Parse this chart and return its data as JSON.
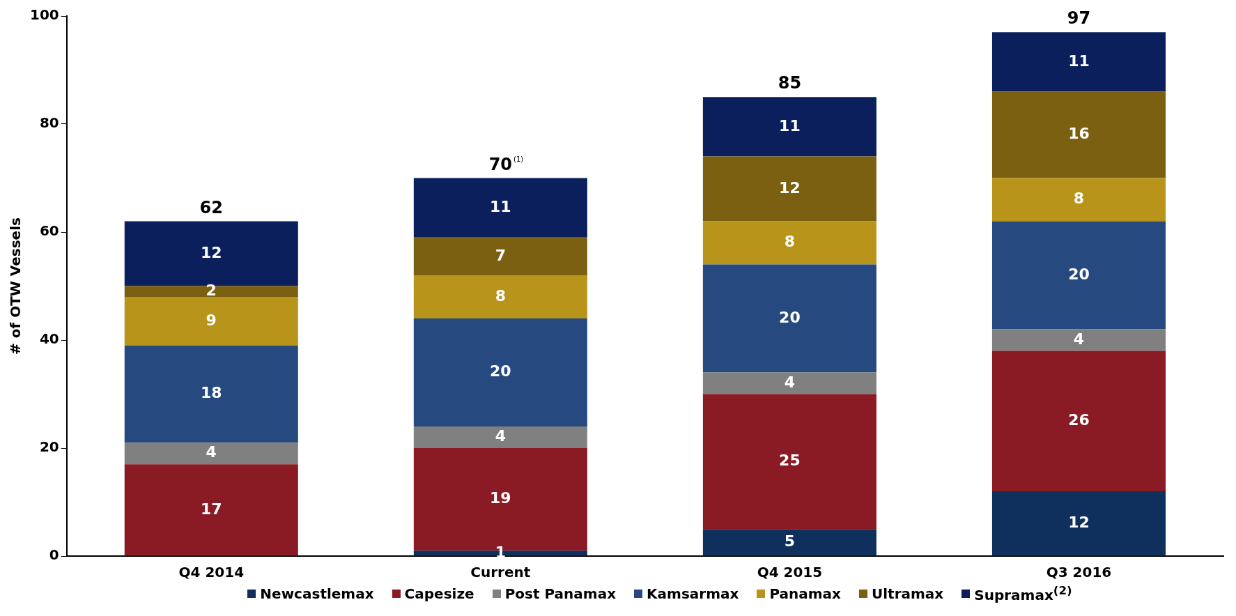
{
  "chart_data": {
    "type": "bar",
    "stacked": true,
    "ylabel": "# of OTW Vessels",
    "categories": [
      "Q4 2014",
      "Current",
      "Q4 2015",
      "Q3 2016"
    ],
    "series": [
      {
        "name": "Newcastlemax",
        "color": "#0f2f5c",
        "values": [
          null,
          1,
          5,
          12
        ]
      },
      {
        "name": "Capesize",
        "color": "#8a1a24",
        "values": [
          17,
          19,
          25,
          26
        ]
      },
      {
        "name": "Post Panamax",
        "color": "#808080",
        "values": [
          4,
          4,
          4,
          4
        ]
      },
      {
        "name": "Kamsarmax",
        "color": "#264a80",
        "values": [
          18,
          20,
          20,
          20
        ]
      },
      {
        "name": "Panamax",
        "color": "#b8941a",
        "values": [
          9,
          8,
          8,
          8
        ]
      },
      {
        "name": "Ultramax",
        "color": "#7a6010",
        "values": [
          2,
          7,
          12,
          16
        ]
      },
      {
        "name": "Supramax$^{(2)}$",
        "color": "#0a1f5c",
        "values": [
          12,
          11,
          11,
          11
        ]
      }
    ],
    "totals": [
      "62",
      "70$^{(1)}$",
      "85",
      "97"
    ],
    "data_labels": true,
    "ylim": [
      0,
      100
    ],
    "yticks": [
      0,
      20,
      40,
      60,
      80,
      100
    ],
    "grid": false,
    "legend": "bottom"
  }
}
